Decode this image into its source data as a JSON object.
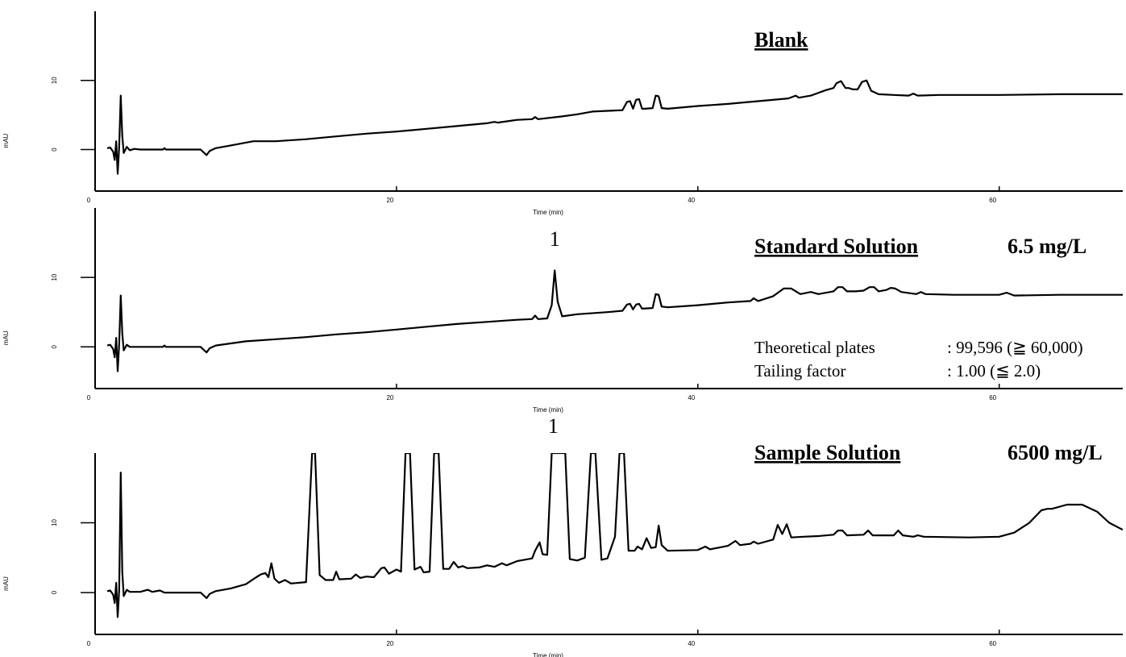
{
  "chart_data": [
    {
      "type": "line",
      "title": "Blank",
      "xlabel": "Time (min)",
      "ylabel": "mAU",
      "color": "#000000",
      "xlim": [
        0,
        68.2
      ],
      "ylim": [
        -6,
        20
      ],
      "xticks": [
        0,
        20,
        40,
        60
      ],
      "yticks": [
        0,
        10
      ],
      "x": [
        0.8,
        1.0,
        1.2,
        1.3,
        1.4,
        1.5,
        1.6,
        1.7,
        1.8,
        1.9,
        2.1,
        2.3,
        2.6,
        3,
        4.5,
        4.6,
        4.7,
        7,
        7.2,
        7.4,
        7.6,
        8,
        9,
        10.5,
        12,
        14,
        16,
        18,
        20,
        22,
        24,
        26,
        26.5,
        26.7,
        28,
        29,
        29.2,
        29.4,
        31,
        32,
        33,
        34,
        35,
        35.3,
        35.5,
        35.7,
        35.9,
        36.1,
        36.3,
        36.5,
        37,
        37.2,
        37.4,
        37.6,
        38,
        40,
        42,
        44,
        46,
        46.5,
        46.7,
        47.5,
        48.5,
        49,
        49.2,
        49.5,
        49.8,
        50,
        50.3,
        50.6,
        50.9,
        51.2,
        51.5,
        52,
        53,
        54,
        54.3,
        54.6,
        56,
        60,
        64,
        68.2
      ],
      "values": [
        0.2,
        0.3,
        -0.3,
        -1.5,
        1.2,
        -3.5,
        0.5,
        7.8,
        2,
        -0.5,
        0.4,
        -0.1,
        0.1,
        0,
        0,
        0.2,
        0,
        0,
        -0.4,
        -0.8,
        -0.2,
        0.2,
        0.6,
        1.2,
        1.2,
        1.5,
        1.9,
        2.3,
        2.6,
        3.0,
        3.4,
        3.8,
        4.0,
        3.9,
        4.3,
        4.4,
        4.7,
        4.4,
        4.8,
        5.1,
        5.5,
        5.6,
        5.7,
        6.9,
        7.0,
        5.9,
        7.2,
        7.3,
        5.9,
        5.9,
        6.0,
        7.8,
        7.7,
        6.0,
        5.9,
        6.3,
        6.6,
        7.0,
        7.4,
        7.8,
        7.5,
        7.8,
        8.6,
        8.9,
        9.6,
        9.9,
        8.9,
        8.9,
        8.7,
        8.7,
        9.8,
        10.0,
        8.5,
        8.0,
        7.9,
        7.8,
        8.1,
        7.8,
        7.9,
        7.9,
        8.0,
        8.0
      ]
    },
    {
      "type": "line",
      "title": "Standard Solution",
      "concentration": "6.5 mg/L",
      "xlabel": "Time (min)",
      "ylabel": "mAU",
      "color": "#000000",
      "xlim": [
        0,
        68.2
      ],
      "ylim": [
        -6,
        20
      ],
      "xticks": [
        0,
        20,
        40,
        60
      ],
      "yticks": [
        0,
        10
      ],
      "annotations": [
        {
          "text": "1",
          "x": 30.5
        }
      ],
      "notes": [
        [
          "Theoretical plates",
          ": 99,596 (≧ 60,000)"
        ],
        [
          "Tailing factor",
          ": 1.00 (≦ 2.0)"
        ]
      ],
      "x": [
        0.8,
        1.0,
        1.2,
        1.3,
        1.4,
        1.5,
        1.6,
        1.7,
        1.8,
        1.9,
        2.1,
        2.3,
        3,
        4.5,
        4.6,
        4.7,
        7,
        7.2,
        7.4,
        7.6,
        8,
        10,
        12,
        14,
        16,
        18,
        20,
        22,
        24,
        26,
        28,
        29,
        29.2,
        29.4,
        30,
        30.3,
        30.5,
        30.7,
        31,
        32,
        34,
        35,
        35.3,
        35.5,
        35.7,
        35.9,
        36.1,
        36.3,
        37,
        37.2,
        37.4,
        37.6,
        38,
        40,
        42,
        43.5,
        43.7,
        44,
        45,
        45.7,
        46.2,
        46.8,
        47.5,
        48,
        49,
        49.3,
        49.6,
        49.9,
        50.5,
        51,
        51.4,
        51.7,
        52,
        52.5,
        52.8,
        53.1,
        53.5,
        54.5,
        54.8,
        55.1,
        57,
        60,
        60.5,
        61,
        64,
        68.2
      ],
      "values": [
        0.2,
        0.3,
        -0.3,
        -1.5,
        1.3,
        -3.5,
        0.5,
        7.4,
        2,
        -0.5,
        0.3,
        0,
        0,
        0,
        0.2,
        0,
        0,
        -0.4,
        -0.8,
        -0.2,
        0.2,
        0.8,
        1.1,
        1.4,
        1.8,
        2.1,
        2.5,
        2.9,
        3.3,
        3.6,
        3.9,
        4.0,
        4.5,
        4.0,
        4.1,
        6,
        11.0,
        6.5,
        4.4,
        4.7,
        5.0,
        5.2,
        6.1,
        6.2,
        5.4,
        6.1,
        6.2,
        5.5,
        5.6,
        7.6,
        7.5,
        5.8,
        5.7,
        6.0,
        6.4,
        6.6,
        7.0,
        6.6,
        7.3,
        8.4,
        8.4,
        7.6,
        7.9,
        7.6,
        8.0,
        8.6,
        8.6,
        8.0,
        8.0,
        8.1,
        8.6,
        8.6,
        8.0,
        8.2,
        8.5,
        8.4,
        7.9,
        7.6,
        7.9,
        7.6,
        7.5,
        7.5,
        7.8,
        7.4,
        7.5,
        7.5
      ]
    },
    {
      "type": "line",
      "title": "Sample Solution",
      "concentration": "6500 mg/L",
      "xlabel": "Time (min)",
      "ylabel": "mAU",
      "color": "#000000",
      "xlim": [
        0,
        68.2
      ],
      "ylim": [
        -6,
        20
      ],
      "xticks": [
        0,
        20,
        40,
        60
      ],
      "yticks": [
        0,
        10
      ],
      "annotations": [
        {
          "text": "1",
          "x": 30.4
        }
      ],
      "x": [
        0.8,
        1.0,
        1.2,
        1.3,
        1.4,
        1.5,
        1.6,
        1.7,
        1.8,
        1.9,
        2.1,
        2.3,
        3,
        3.5,
        3.8,
        4.3,
        4.6,
        7,
        7.2,
        7.4,
        7.6,
        8,
        9,
        10,
        10.7,
        11,
        11.3,
        11.5,
        11.7,
        11.9,
        12.2,
        12.6,
        13,
        14,
        14.4,
        14.6,
        14.9,
        15.3,
        15.8,
        16,
        16.2,
        17,
        17.3,
        17.6,
        18,
        18.5,
        19,
        19.2,
        19.5,
        20,
        20.3,
        20.6,
        20.9,
        21.2,
        21.6,
        21.8,
        22.2,
        22.5,
        22.8,
        23.1,
        23.5,
        23.8,
        24.1,
        24.4,
        24.7,
        25.5,
        26,
        26.5,
        27,
        27.3,
        28,
        29,
        29.2,
        29.5,
        29.7,
        30,
        30.3,
        31.2,
        31.5,
        32,
        32.5,
        32.9,
        33.2,
        33.6,
        34,
        34.5,
        34.8,
        35.1,
        35.4,
        35.8,
        36,
        36.3,
        36.6,
        36.9,
        37.2,
        37.4,
        37.6,
        38,
        40,
        40.5,
        40.8,
        42,
        42.5,
        42.8,
        43.5,
        43.7,
        44,
        45,
        45.3,
        45.6,
        45.9,
        46.2,
        47,
        48,
        49,
        49.3,
        49.6,
        49.9,
        51,
        51.3,
        51.6,
        53,
        53.3,
        53.6,
        54.3,
        54.6,
        55,
        58,
        60,
        61,
        62,
        62.8,
        63.2,
        63.5,
        64.5,
        65.5,
        66.5,
        67.3,
        68.2
      ],
      "values": [
        0.2,
        0.3,
        -0.3,
        -1.5,
        1.4,
        -3.5,
        0.5,
        17.2,
        3,
        -0.5,
        0.4,
        0.1,
        0.1,
        0.4,
        0.1,
        0.3,
        0,
        0,
        -0.4,
        -0.8,
        -0.2,
        0.2,
        0.6,
        1.2,
        2.2,
        2.6,
        2.8,
        2.2,
        4.2,
        2,
        1.4,
        1.8,
        1.3,
        1.5,
        20,
        20,
        2.5,
        1.8,
        1.8,
        3.0,
        1.9,
        2.0,
        2.6,
        2.1,
        2.3,
        2.2,
        3.5,
        3.6,
        2.7,
        3.3,
        3.0,
        20,
        20,
        3.3,
        3.7,
        2.9,
        3.0,
        20,
        20,
        3.4,
        3.4,
        4.4,
        3.6,
        3.8,
        3.5,
        3.6,
        3.9,
        3.7,
        4.2,
        3.9,
        4.5,
        4.9,
        6,
        7.2,
        5.5,
        5.4,
        20,
        20,
        4.8,
        4.6,
        5.0,
        20,
        20,
        4.7,
        4.9,
        8,
        20,
        20,
        6.0,
        6.0,
        6.6,
        6.2,
        7.8,
        6.4,
        6.5,
        9.6,
        6.8,
        6.0,
        6.1,
        6.6,
        6.2,
        6.7,
        7.4,
        6.8,
        7.0,
        7.3,
        7.0,
        7.6,
        9.7,
        8.4,
        9.8,
        7.9,
        8.0,
        8.1,
        8.3,
        8.9,
        8.9,
        8.2,
        8.3,
        8.9,
        8.2,
        8.2,
        8.9,
        8.2,
        8.0,
        8.2,
        8.0,
        7.9,
        8.0,
        8.6,
        10,
        11.8,
        12,
        12.0,
        12.6,
        12.6,
        11.6,
        10.0,
        9.0
      ]
    }
  ]
}
